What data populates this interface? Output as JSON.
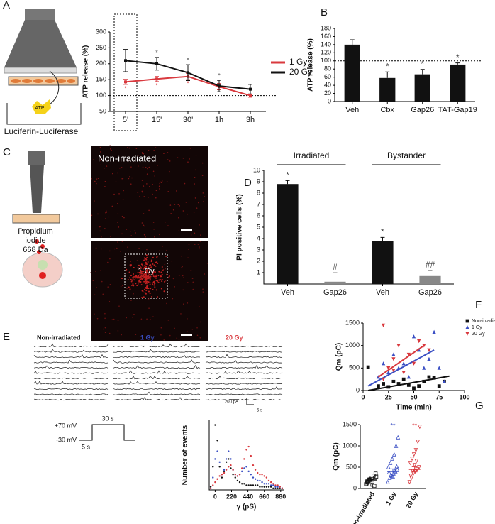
{
  "texts": {
    "letters": [
      "A",
      "B",
      "C",
      "D",
      "E",
      "F",
      "G"
    ],
    "luciferin": "Luciferin-Luciferase",
    "atp": "ATP",
    "propidium": [
      "Propidium",
      "iodide",
      "668 Da"
    ],
    "image_top": "Non-irradiated",
    "image_bottom": "1 Gy",
    "trace_titles": [
      "Non-irradiated",
      "1 Gy",
      "20 Gy"
    ],
    "trace_scale": [
      "200 pA",
      "5 s"
    ],
    "protocol": [
      "+70 mV",
      "-30 mV",
      "30 s",
      "5 s"
    ]
  },
  "chart_data": [
    {
      "type": "line",
      "ylabel": "ATP release (%)",
      "categories": [
        "5'",
        "15'",
        "30'",
        "1h",
        "3h"
      ],
      "series": [
        {
          "name": "1 Gy",
          "color": "#d9393e",
          "values": [
            143,
            152,
            160,
            128,
            100
          ],
          "errors": [
            8,
            8,
            10,
            10,
            5
          ],
          "sig_labels": [
            "*",
            "*",
            "*",
            null,
            null
          ]
        },
        {
          "name": "20 Gy",
          "color": "#111111",
          "values": [
            210,
            200,
            172,
            130,
            120
          ],
          "errors": [
            35,
            20,
            25,
            18,
            15
          ],
          "sig_labels": [
            null,
            "*",
            "*",
            "*",
            null
          ]
        }
      ],
      "ylim": [
        50,
        300
      ],
      "yticks": [
        50,
        100,
        150,
        200,
        250,
        300
      ],
      "hline": 100,
      "legend": "right"
    },
    {
      "type": "bar",
      "ylabel": "ATP release (%)",
      "categories": [
        "Veh",
        "Cbx",
        "Gap26",
        "TAT-Gap19"
      ],
      "values": [
        140,
        58,
        67,
        91
      ],
      "errors": [
        12,
        15,
        12,
        4
      ],
      "sig_labels": [
        null,
        "*",
        "*",
        "*"
      ],
      "color": "#111111",
      "ylim": [
        0,
        180
      ],
      "yticks": [
        0,
        20,
        40,
        60,
        80,
        100,
        120,
        140,
        160,
        180
      ],
      "hline": 100
    },
    {
      "type": "bar",
      "ylabel": "PI positive cells (%)",
      "categories": [
        "Veh",
        "Gap26",
        "Veh",
        "Gap26"
      ],
      "groups": [
        "Irradiated",
        "Bystander"
      ],
      "values": [
        8.8,
        0.2,
        3.8,
        0.7
      ],
      "errors": [
        0.3,
        0.8,
        0.3,
        0.5
      ],
      "sig_labels": [
        "*",
        "#",
        "*",
        "##"
      ],
      "colors": [
        "#111111",
        "#888888",
        "#111111",
        "#888888"
      ],
      "ylim": [
        0,
        10
      ],
      "yticks": [
        1,
        2,
        3,
        4,
        5,
        6,
        7,
        8,
        9,
        10
      ]
    },
    {
      "type": "dot",
      "ylabel": "Number of events",
      "xlabel": "γ (pS)",
      "x": [
        -60,
        -30,
        0,
        30,
        60,
        90,
        120,
        150,
        180,
        210,
        240,
        270,
        300,
        330,
        360,
        390,
        420,
        450,
        480,
        510,
        540,
        570,
        600,
        630,
        660,
        690,
        720,
        750,
        780,
        810,
        840,
        870,
        900
      ],
      "series": [
        {
          "name": "Non-irradiated",
          "color": "#111111",
          "values": [
            0.2,
            1.5,
            4.2,
            3.2,
            1.5,
            0.8,
            1.2,
            1.8,
            2.0,
            1.4,
            1.0,
            0.8,
            0.6,
            0.5,
            0.4,
            0.4,
            0.3,
            0.3,
            0.3,
            0.3,
            0.3,
            0.3,
            0.2,
            0.2,
            0.2,
            0.2,
            0.2,
            0.2,
            0.1,
            0.1,
            0.1,
            0.1,
            0.1
          ]
        },
        {
          "name": "1 Gy",
          "color": "#3a4fc4",
          "values": [
            0.1,
            0.8,
            2.0,
            2.5,
            1.8,
            1.0,
            1.3,
            2.0,
            2.5,
            2.0,
            1.3,
            1.0,
            0.9,
            1.0,
            1.2,
            1.4,
            1.5,
            1.2,
            1.0,
            0.8,
            0.7,
            0.6,
            0.6,
            0.5,
            0.4,
            0.4,
            0.4,
            0.3,
            0.3,
            0.2,
            0.2,
            0.2,
            0.1
          ]
        },
        {
          "name": "20 Gy",
          "color": "#d9393e",
          "values": [
            0.1,
            0.3,
            0.5,
            0.7,
            0.9,
            1.0,
            1.1,
            1.3,
            1.5,
            1.6,
            1.3,
            1.0,
            0.9,
            1.0,
            1.4,
            2.0,
            2.6,
            2.8,
            2.2,
            1.6,
            1.3,
            1.1,
            1.0,
            1.0,
            0.9,
            0.8,
            0.6,
            0.5,
            0.4,
            0.3,
            0.3,
            0.2,
            0.1
          ]
        }
      ],
      "xlim": [
        -80,
        920
      ],
      "xticks": [
        0,
        220,
        440,
        660,
        880
      ],
      "ylim": [
        0,
        4.5
      ]
    },
    {
      "type": "scatter",
      "ylabel": "Qm (pC)",
      "xlabel": "Time (min)",
      "series": [
        {
          "name": "Non-irradiated",
          "color": "#111111",
          "marker": "square",
          "x": [
            5,
            15,
            20,
            25,
            30,
            35,
            40,
            45,
            50,
            55,
            60,
            65,
            70,
            75,
            80
          ],
          "values": [
            520,
            100,
            150,
            80,
            200,
            150,
            250,
            120,
            50,
            100,
            200,
            300,
            280,
            100,
            200
          ],
          "fit": {
            "x": [
              5,
              85
            ],
            "values": [
              0,
              320
            ]
          }
        },
        {
          "name": "1 Gy",
          "color": "#3a4fc4",
          "marker": "triangle",
          "x": [
            15,
            20,
            25,
            30,
            35,
            40,
            45,
            50,
            55,
            60,
            65,
            70,
            75,
            80
          ],
          "values": [
            300,
            600,
            400,
            800,
            500,
            600,
            300,
            1200,
            900,
            500,
            700,
            1300,
            500,
            200
          ],
          "fit": {
            "x": [
              5,
              70
            ],
            "values": [
              100,
              900
            ]
          }
        },
        {
          "name": "20 Gy",
          "color": "#d9393e",
          "marker": "triangle-down",
          "x": [
            20,
            25,
            30,
            35,
            40,
            45,
            50,
            55,
            60,
            65,
            20,
            30
          ],
          "values": [
            1450,
            500,
            700,
            1000,
            400,
            800,
            600,
            1100,
            1000,
            900,
            250,
            450
          ],
          "fit": {
            "x": [
              15,
              60
            ],
            "values": [
              300,
              1000
            ]
          }
        }
      ],
      "xlim": [
        0,
        100
      ],
      "xticks": [
        0,
        25,
        50,
        75,
        100
      ],
      "ylim": [
        0,
        1500
      ],
      "yticks": [
        0,
        500,
        1000,
        1500
      ],
      "legend": "top-right"
    },
    {
      "type": "strip",
      "ylabel": "Qm (pC)",
      "series": [
        {
          "name": "Non-irradiated",
          "color": "#111111",
          "marker": "square",
          "values": [
            100,
            150,
            200,
            250,
            300,
            350,
            120,
            180,
            220,
            90,
            60,
            280,
            160,
            210
          ],
          "mean": 200,
          "error": 30
        },
        {
          "name": "1 Gy",
          "color": "#3a4fc4",
          "marker": "triangle",
          "values": [
            150,
            250,
            300,
            350,
            400,
            450,
            500,
            600,
            700,
            800,
            1000,
            1200,
            380,
            320,
            280,
            420,
            520
          ],
          "mean": 400,
          "error": 60,
          "sig_label": "**"
        },
        {
          "name": "20 Gy",
          "color": "#d9393e",
          "marker": "triangle-down",
          "values": [
            150,
            250,
            350,
            400,
            450,
            500,
            600,
            700,
            800,
            900,
            1100,
            1450,
            300,
            420,
            550,
            650
          ],
          "mean": 450,
          "error": 60,
          "sig_label": "**"
        }
      ],
      "ylim": [
        0,
        1500
      ],
      "yticks": [
        0,
        500,
        1000,
        1500
      ]
    }
  ]
}
